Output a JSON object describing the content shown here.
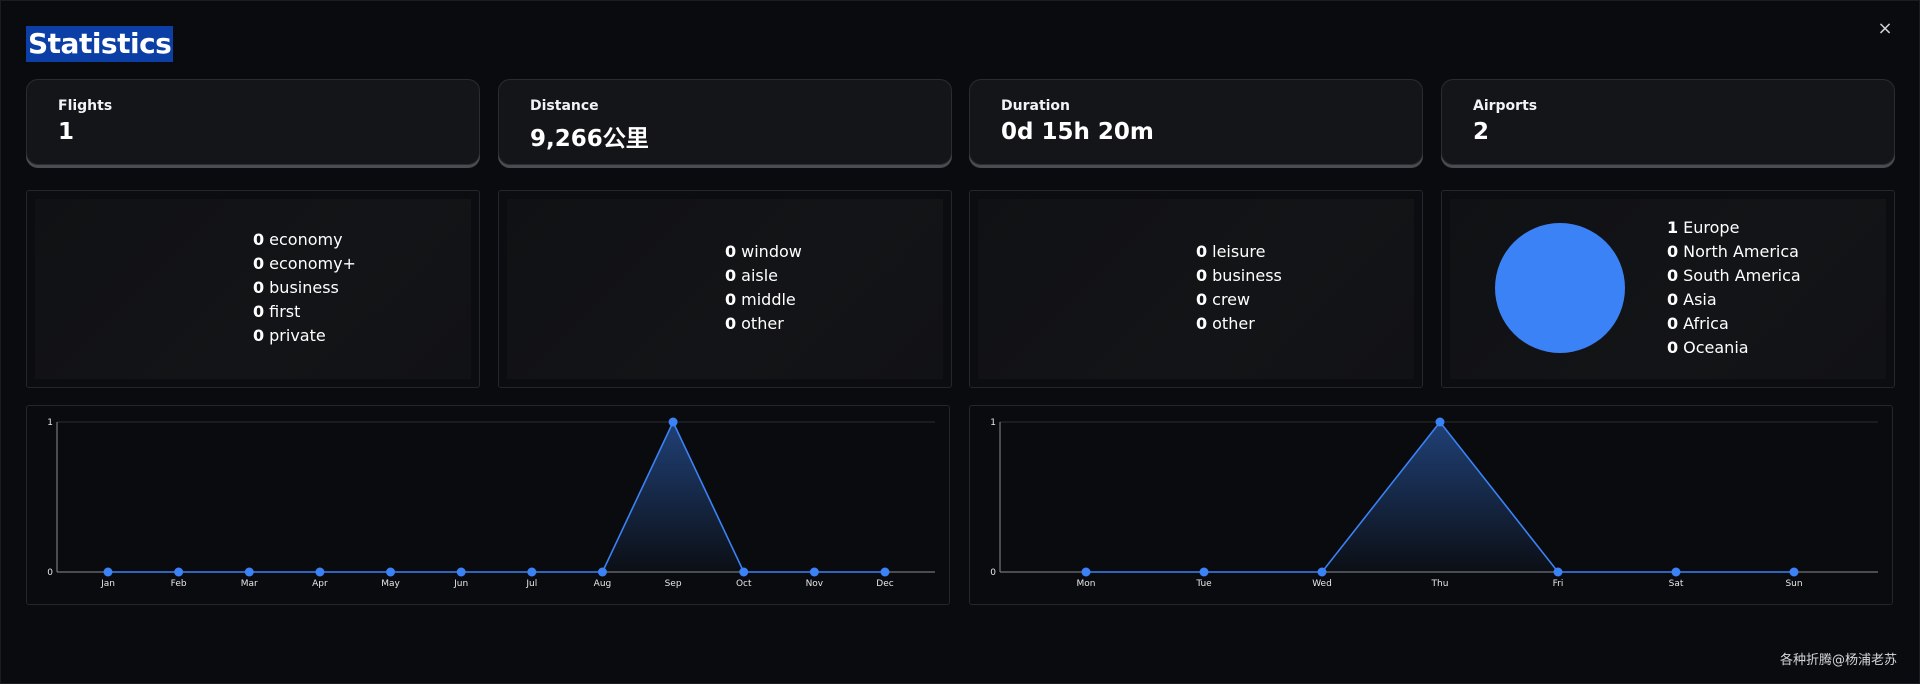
{
  "title": "Statistics",
  "close_icon": "×",
  "stats": [
    {
      "label": "Flights",
      "value": "1"
    },
    {
      "label": "Distance",
      "value": "9,266公里"
    },
    {
      "label": "Duration",
      "value": "0d 15h 20m"
    },
    {
      "label": "Airports",
      "value": "2"
    }
  ],
  "seat_class": [
    {
      "count": "0",
      "label": "economy"
    },
    {
      "count": "0",
      "label": "economy+"
    },
    {
      "count": "0",
      "label": "business"
    },
    {
      "count": "0",
      "label": "first"
    },
    {
      "count": "0",
      "label": "private"
    }
  ],
  "seat_type": [
    {
      "count": "0",
      "label": "window"
    },
    {
      "count": "0",
      "label": "aisle"
    },
    {
      "count": "0",
      "label": "middle"
    },
    {
      "count": "0",
      "label": "other"
    }
  ],
  "reason": [
    {
      "count": "0",
      "label": "leisure"
    },
    {
      "count": "0",
      "label": "business"
    },
    {
      "count": "0",
      "label": "crew"
    },
    {
      "count": "0",
      "label": "other"
    }
  ],
  "continents": {
    "pie_color": "#3b82f6",
    "items": [
      {
        "count": "1",
        "label": "Europe"
      },
      {
        "count": "0",
        "label": "North America"
      },
      {
        "count": "0",
        "label": "South America"
      },
      {
        "count": "0",
        "label": "Asia"
      },
      {
        "count": "0",
        "label": "Africa"
      },
      {
        "count": "0",
        "label": "Oceania"
      }
    ]
  },
  "chart_data": [
    {
      "type": "area",
      "categories": [
        "Jan",
        "Feb",
        "Mar",
        "Apr",
        "May",
        "Jun",
        "Jul",
        "Aug",
        "Sep",
        "Oct",
        "Nov",
        "Dec"
      ],
      "values": [
        0,
        0,
        0,
        0,
        0,
        0,
        0,
        0,
        1,
        0,
        0,
        0
      ],
      "ylim": [
        0,
        1
      ],
      "yticks": [
        "0",
        "1"
      ],
      "color": "#3b82f6"
    },
    {
      "type": "area",
      "categories": [
        "Mon",
        "Tue",
        "Wed",
        "Thu",
        "Fri",
        "Sat",
        "Sun"
      ],
      "values": [
        0,
        0,
        0,
        1,
        0,
        0,
        0
      ],
      "ylim": [
        0,
        1
      ],
      "yticks": [
        "0",
        "1"
      ],
      "color": "#3b82f6"
    }
  ],
  "watermark": "各种折腾@杨浦老苏"
}
